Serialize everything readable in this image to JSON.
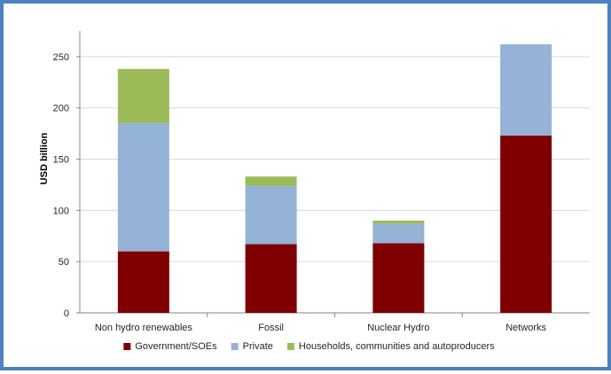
{
  "chart_data": {
    "type": "bar",
    "stacked": true,
    "title": "",
    "xlabel": "",
    "ylabel": "USD billion",
    "ylim": [
      0,
      275
    ],
    "yticks": [
      0,
      50,
      100,
      150,
      200,
      250
    ],
    "grid": true,
    "legend_position": "bottom",
    "categories": [
      "Non hydro renewables",
      "Fossil",
      "Nuclear Hydro",
      "Networks"
    ],
    "series": [
      {
        "name": "Government/SOEs",
        "color": "#7f0000",
        "values": [
          60,
          67,
          68,
          173
        ]
      },
      {
        "name": "Private",
        "color": "#95b3d7",
        "values": [
          125,
          57,
          19,
          89
        ]
      },
      {
        "name": "Households, communities and autoproducers",
        "color": "#9bbb59",
        "values": [
          53,
          9,
          3,
          0
        ]
      }
    ]
  }
}
